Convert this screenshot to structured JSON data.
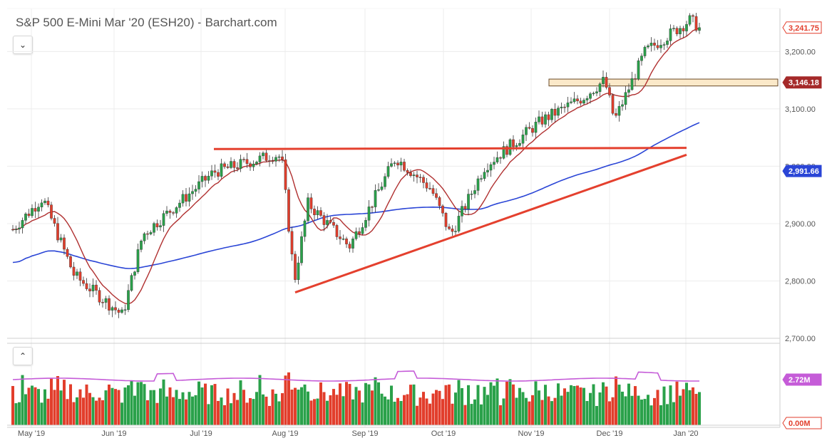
{
  "header": {
    "title": "S&P 500 E-Mini Mar '20 (ESH20) - Barchart.com",
    "collapse_icon": "chevron-down-icon",
    "expand_icon": "chevron-up-icon"
  },
  "chart_data": {
    "type": "candlestick",
    "title": "S&P 500 E-Mini Mar '20 (ESH20) - Barchart.com",
    "ylim": [
      2700,
      3275
    ],
    "y_ticks": [
      "2,700.00",
      "2,800.00",
      "2,900.00",
      "3,000.00",
      "3,100.00",
      "3,200.00"
    ],
    "x_ticks": [
      "May '19",
      "Jun '19",
      "Jul '19",
      "Aug '19",
      "Sep '19",
      "Oct '19",
      "Nov '19",
      "Dec '19",
      "Jan '20"
    ],
    "grid": true,
    "colors": {
      "up": "#2aa14a",
      "down": "#e23e2c",
      "ma_fast": "#b03030",
      "ma_slow": "#2a45d6",
      "trend": "#e4402e",
      "volume_ma": "#c55cd8",
      "zone": "#fbe9c9"
    },
    "price_labels": [
      {
        "text": "3,241.75",
        "value": 3241.75,
        "color": "#e23e2c",
        "style": "outline"
      },
      {
        "text": "3,146.18",
        "value": 3146.18,
        "color": "#a52a2a",
        "style": "filled"
      },
      {
        "text": "2,991.66",
        "value": 2991.66,
        "color": "#2a45d6",
        "style": "filled"
      }
    ],
    "volume": {
      "labels": [
        {
          "text": "2.72M",
          "color": "#c55cd8",
          "style": "filled"
        },
        {
          "text": "0.00M",
          "color": "#e23e2c",
          "style": "outline"
        }
      ]
    },
    "annotations": {
      "resistance_line": {
        "from": [
          "Jul '19",
          3030
        ],
        "to": [
          "Jan '20",
          3032
        ]
      },
      "uptrend_line": {
        "from": [
          "Aug '19",
          2780
        ],
        "to": [
          "Jan '20",
          3020
        ]
      },
      "support_zone": {
        "from": "Nov '19",
        "to": "Jan '20",
        "low": 3140,
        "high": 3152
      }
    },
    "anchors": [
      {
        "x": "May '19",
        "close": 2890
      },
      {
        "x": "May '19",
        "close": 2945
      },
      {
        "x": "May '19",
        "close": 2810
      },
      {
        "x": "Jun '19",
        "close": 2740
      },
      {
        "x": "Jun '19",
        "close": 2880
      },
      {
        "x": "Jul '19",
        "close": 2990
      },
      {
        "x": "Jul '19",
        "close": 3020
      },
      {
        "x": "Aug '19",
        "close": 3015
      },
      {
        "x": "Aug '19",
        "close": 2800
      },
      {
        "x": "Aug '19",
        "close": 2935
      },
      {
        "x": "Sep '19",
        "close": 2860
      },
      {
        "x": "Sep '19",
        "close": 3015
      },
      {
        "x": "Oct '19",
        "close": 2960
      },
      {
        "x": "Oct '19",
        "close": 2880
      },
      {
        "x": "Oct '19",
        "close": 3000
      },
      {
        "x": "Nov '19",
        "close": 3080
      },
      {
        "x": "Nov '19",
        "close": 3120
      },
      {
        "x": "Dec '19",
        "close": 3150
      },
      {
        "x": "Dec '19",
        "close": 3080
      },
      {
        "x": "Dec '19",
        "close": 3200
      },
      {
        "x": "Jan '20",
        "close": 3255
      },
      {
        "x": "Jan '20",
        "close": 3241.75
      }
    ]
  }
}
